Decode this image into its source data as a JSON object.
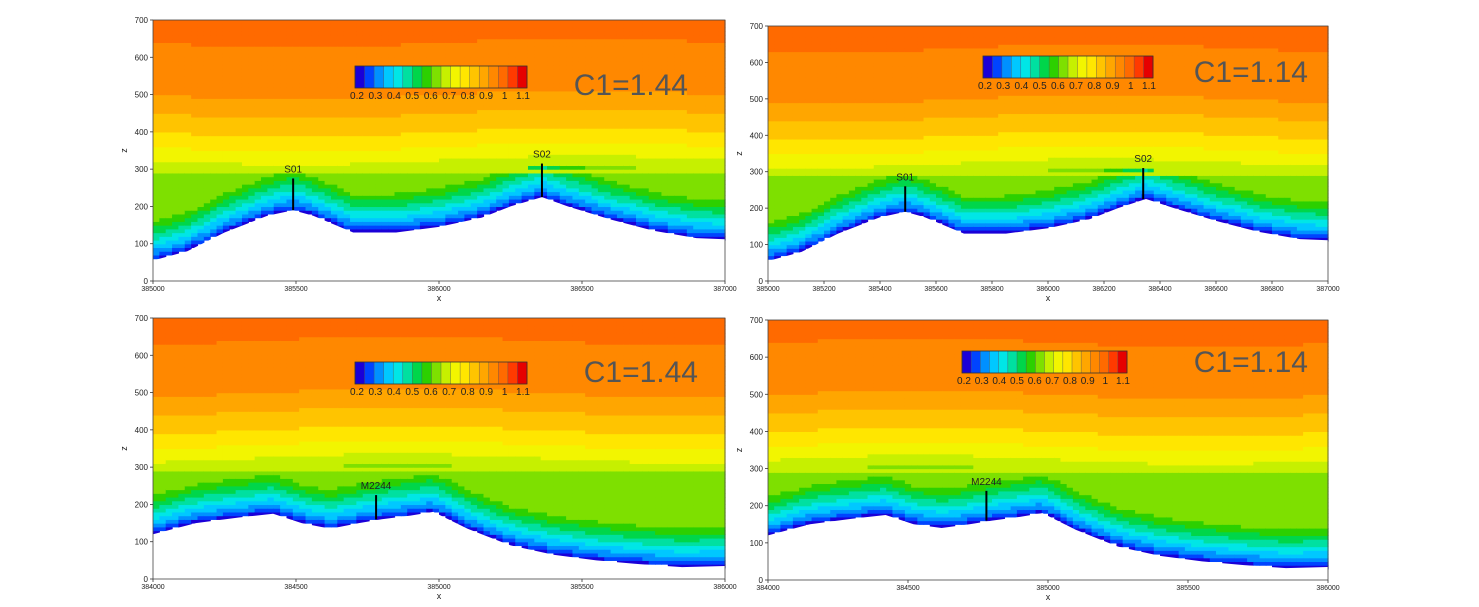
{
  "colorbar_labels": [
    "0.2",
    "0.3",
    "0.4",
    "0.5",
    "0.6",
    "0.7",
    "0.8",
    "0.9",
    "1",
    "1.1"
  ],
  "colorbar_colors": [
    "#1a00d8",
    "#0044ff",
    "#0090ff",
    "#00c8ff",
    "#00e6e6",
    "#00e0a0",
    "#00d64a",
    "#2cd000",
    "#7ee000",
    "#c6f000",
    "#f2f500",
    "#ffe600",
    "#ffc400",
    "#ffa600",
    "#ff8800",
    "#ff6a00",
    "#ff3a00",
    "#e60000"
  ],
  "chart_data": [
    {
      "type": "heatmap",
      "annotation": "C1=1.44",
      "xlabel": "x",
      "ylabel": "z",
      "xlim": [
        385000,
        387000
      ],
      "ylim": [
        0,
        700
      ],
      "xticks": [
        "385000",
        "385500",
        "386000",
        "386500",
        "387000"
      ],
      "yticks": [
        "0",
        "100",
        "200",
        "300",
        "400",
        "500",
        "600",
        "700"
      ],
      "stations": [
        {
          "name": "S01",
          "x": 385490,
          "z": 190,
          "top": 275
        },
        {
          "name": "S02",
          "x": 386360,
          "z": 225,
          "top": 315
        }
      ],
      "terrain": [
        [
          385000,
          55
        ],
        [
          385120,
          80
        ],
        [
          385250,
          130
        ],
        [
          385400,
          175
        ],
        [
          385490,
          190
        ],
        [
          385560,
          175
        ],
        [
          385700,
          130
        ],
        [
          385850,
          130
        ],
        [
          386000,
          145
        ],
        [
          386150,
          170
        ],
        [
          386250,
          200
        ],
        [
          386360,
          225
        ],
        [
          386450,
          200
        ],
        [
          386600,
          165
        ],
        [
          386750,
          135
        ],
        [
          386900,
          115
        ],
        [
          387000,
          112
        ]
      ]
    },
    {
      "type": "heatmap",
      "annotation": "C1=1.14",
      "xlabel": "x",
      "ylabel": "z",
      "xlim": [
        385000,
        387000
      ],
      "ylim": [
        0,
        700
      ],
      "xticks": [
        "385000",
        "385200",
        "385400",
        "385600",
        "385800",
        "386000",
        "386200",
        "386400",
        "386600",
        "386800",
        "387000"
      ],
      "yticks": [
        "0",
        "100",
        "200",
        "300",
        "400",
        "500",
        "600",
        "700"
      ],
      "stations": [
        {
          "name": "S01",
          "x": 385490,
          "z": 190,
          "top": 260
        },
        {
          "name": "S02",
          "x": 386340,
          "z": 225,
          "top": 310
        }
      ],
      "terrain": [
        [
          385000,
          55
        ],
        [
          385120,
          80
        ],
        [
          385250,
          130
        ],
        [
          385400,
          175
        ],
        [
          385490,
          190
        ],
        [
          385560,
          175
        ],
        [
          385700,
          130
        ],
        [
          385850,
          130
        ],
        [
          386000,
          145
        ],
        [
          386150,
          170
        ],
        [
          386250,
          200
        ],
        [
          386350,
          225
        ],
        [
          386450,
          200
        ],
        [
          386600,
          165
        ],
        [
          386750,
          135
        ],
        [
          386900,
          115
        ],
        [
          387000,
          112
        ]
      ]
    },
    {
      "type": "heatmap",
      "annotation": "C1=1.44",
      "xlabel": "x",
      "ylabel": "z",
      "xlim": [
        384000,
        386000
      ],
      "ylim": [
        0,
        700
      ],
      "xticks": [
        "384000",
        "384500",
        "385000",
        "385500",
        "386000"
      ],
      "yticks": [
        "0",
        "100",
        "200",
        "300",
        "400",
        "500",
        "600",
        "700"
      ],
      "stations": [
        {
          "name": "M2244",
          "x": 384780,
          "z": 160,
          "top": 225
        }
      ],
      "terrain": [
        [
          384000,
          120
        ],
        [
          384150,
          150
        ],
        [
          384300,
          165
        ],
        [
          384420,
          175
        ],
        [
          384520,
          150
        ],
        [
          384620,
          135
        ],
        [
          384720,
          150
        ],
        [
          384800,
          160
        ],
        [
          384900,
          170
        ],
        [
          384980,
          180
        ],
        [
          385100,
          135
        ],
        [
          385250,
          90
        ],
        [
          385400,
          65
        ],
        [
          385550,
          50
        ],
        [
          385700,
          40
        ],
        [
          385850,
          32
        ],
        [
          386000,
          35
        ]
      ]
    },
    {
      "type": "heatmap",
      "annotation": "C1=1.14",
      "xlabel": "x",
      "ylabel": "z",
      "xlim": [
        384000,
        386000
      ],
      "ylim": [
        0,
        700
      ],
      "xticks": [
        "384000",
        "384500",
        "385000",
        "385500",
        "386000"
      ],
      "yticks": [
        "0",
        "100",
        "200",
        "300",
        "400",
        "500",
        "600",
        "700"
      ],
      "stations": [
        {
          "name": "M2244",
          "x": 384780,
          "z": 160,
          "top": 240
        }
      ],
      "terrain": [
        [
          384000,
          120
        ],
        [
          384150,
          150
        ],
        [
          384300,
          165
        ],
        [
          384420,
          175
        ],
        [
          384520,
          150
        ],
        [
          384620,
          140
        ],
        [
          384720,
          150
        ],
        [
          384800,
          160
        ],
        [
          384900,
          170
        ],
        [
          384980,
          180
        ],
        [
          385100,
          135
        ],
        [
          385250,
          90
        ],
        [
          385400,
          65
        ],
        [
          385550,
          50
        ],
        [
          385700,
          40
        ],
        [
          385850,
          32
        ],
        [
          386000,
          35
        ]
      ]
    }
  ]
}
